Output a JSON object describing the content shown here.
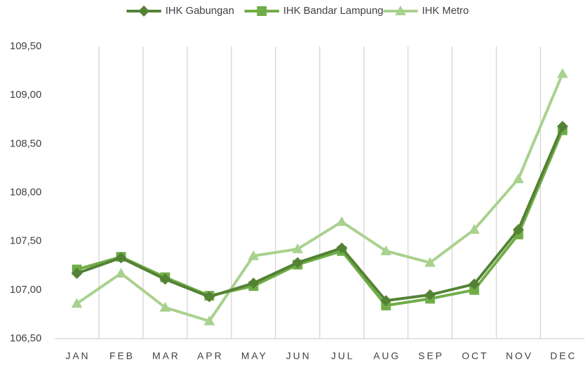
{
  "chart_data": {
    "type": "line",
    "categories": [
      "JAN",
      "FEB",
      "MAR",
      "APR",
      "MAY",
      "JUN",
      "JUL",
      "AUG",
      "SEP",
      "OCT",
      "NOV",
      "DEC"
    ],
    "series": [
      {
        "name": "IHK Gabungan",
        "color": "#548235",
        "marker": "diamond",
        "values": [
          107.17,
          107.33,
          107.11,
          106.93,
          107.07,
          107.28,
          107.43,
          106.89,
          106.95,
          107.06,
          107.62,
          108.68
        ]
      },
      {
        "name": "IHK Bandar Lampung",
        "color": "#70ad47",
        "marker": "square",
        "values": [
          107.21,
          107.34,
          107.13,
          106.94,
          107.04,
          107.26,
          107.4,
          106.84,
          106.91,
          107.0,
          107.57,
          108.64
        ]
      },
      {
        "name": "IHK Metro",
        "color": "#a9d18e",
        "marker": "triangle",
        "values": [
          106.86,
          107.17,
          106.82,
          106.68,
          107.35,
          107.42,
          107.7,
          107.4,
          107.28,
          107.62,
          108.14,
          109.22
        ]
      }
    ],
    "ylim": [
      106.5,
      109.5
    ],
    "yticks": [
      {
        "value": 106.5,
        "label": "106,50"
      },
      {
        "value": 107,
        "label": "107,00"
      },
      {
        "value": 107.5,
        "label": "107,50"
      },
      {
        "value": 108,
        "label": "108,00"
      },
      {
        "value": 108.5,
        "label": "108,50"
      },
      {
        "value": 109,
        "label": "109,00"
      },
      {
        "value": 109.5,
        "label": "109,50"
      }
    ],
    "legend": "top"
  }
}
